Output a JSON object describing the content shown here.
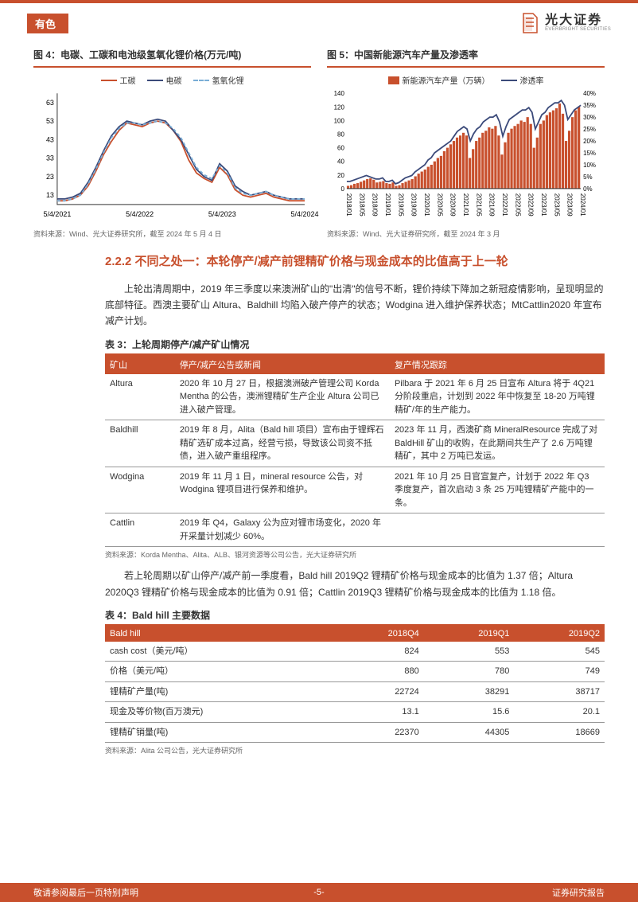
{
  "header": {
    "category": "有色",
    "company_cn": "光大证券",
    "company_en": "EVERBRIGHT SECURITIES"
  },
  "chart4": {
    "title": "图 4：电碳、工碳和电池级氢氧化锂价格(万元/吨)",
    "source": "资料来源：Wind、光大证券研究所，截至 2024 年 5 月 4 日",
    "type": "line",
    "background_color": "#ffffff",
    "series": [
      {
        "name": "工碳",
        "color": "#c8502d",
        "style": "solid"
      },
      {
        "name": "电碳",
        "color": "#3b4a7a",
        "style": "solid"
      },
      {
        "name": "氢氧化锂",
        "color": "#7aaed6",
        "style": "dashed"
      }
    ],
    "x_labels": [
      "5/4/2021",
      "5/4/2022",
      "5/4/2023",
      "5/4/2024"
    ],
    "y_ticks": [
      13,
      23,
      33,
      43,
      53,
      63
    ],
    "ylim": [
      8,
      68
    ],
    "axis_fontsize": 9,
    "line_width": 1.8,
    "gongtan": [
      10,
      10,
      11,
      13,
      18,
      26,
      35,
      42,
      48,
      52,
      51,
      50,
      52,
      53,
      52,
      48,
      42,
      32,
      25,
      22,
      20,
      28,
      24,
      16,
      13,
      12,
      13,
      14,
      12,
      11,
      10,
      10,
      10
    ],
    "diantan": [
      11,
      11,
      12,
      14,
      20,
      28,
      37,
      45,
      50,
      53,
      52,
      51,
      53,
      54,
      53,
      48,
      43,
      35,
      27,
      23,
      21,
      30,
      26,
      18,
      15,
      13,
      14,
      15,
      13,
      12,
      11,
      11,
      11
    ],
    "qingyang": [
      10,
      10,
      11,
      13,
      19,
      27,
      36,
      44,
      49,
      52,
      52,
      51,
      52,
      53,
      52,
      49,
      44,
      36,
      28,
      24,
      22,
      29,
      25,
      17,
      14,
      13,
      14,
      15,
      13,
      12,
      11,
      11,
      11
    ]
  },
  "chart5": {
    "title": "图 5：中国新能源汽车产量及渗透率",
    "source": "资料来源：Wind、光大证券研究所，截至 2024 年 3 月",
    "type": "bar+line",
    "background_color": "#ffffff",
    "series": [
      {
        "name": "新能源汽车产量（万辆）",
        "color": "#c8502d",
        "type": "bar"
      },
      {
        "name": "渗透率",
        "color": "#3b4a7a",
        "type": "line"
      }
    ],
    "x_labels": [
      "2018/01",
      "2018/05",
      "2018/09",
      "2019/01",
      "2019/05",
      "2019/09",
      "2020/01",
      "2020/05",
      "2020/09",
      "2021/01",
      "2021/05",
      "2021/09",
      "2022/01",
      "2022/05",
      "2022/09",
      "2023/01",
      "2023/05",
      "2023/09",
      "2024/01"
    ],
    "y_left_ticks": [
      0,
      20,
      40,
      60,
      80,
      100,
      120,
      140
    ],
    "y_right_ticks": [
      "0%",
      "5%",
      "10%",
      "15%",
      "20%",
      "25%",
      "30%",
      "35%",
      "40%"
    ],
    "ylim_left": [
      0,
      140
    ],
    "ylim_right": [
      0,
      40
    ],
    "axis_fontsize": 8,
    "production": [
      4,
      5,
      7,
      8,
      10,
      12,
      14,
      15,
      13,
      9,
      10,
      11,
      8,
      7,
      9,
      4,
      5,
      8,
      10,
      12,
      14,
      18,
      22,
      25,
      28,
      32,
      35,
      40,
      45,
      48,
      55,
      60,
      65,
      70,
      75,
      78,
      82,
      78,
      45,
      58,
      70,
      75,
      82,
      85,
      90,
      88,
      92,
      78,
      50,
      68,
      82,
      88,
      92,
      95,
      100,
      98,
      105,
      95,
      60,
      75,
      95,
      100,
      108,
      112,
      115,
      118,
      125,
      110,
      70,
      85,
      105,
      115,
      120
    ],
    "penetration": [
      3,
      3,
      3.5,
      4,
      4.5,
      5,
      5.5,
      5,
      4.5,
      4,
      4,
      4.5,
      3,
      3,
      3.5,
      2,
      2.5,
      3.5,
      4.5,
      5,
      5.5,
      7,
      8,
      9,
      10,
      12,
      13,
      15,
      16,
      17,
      18,
      19,
      20,
      22,
      24,
      25,
      26,
      25,
      20,
      23,
      25,
      26,
      28,
      29,
      30,
      30,
      31,
      28,
      22,
      26,
      29,
      30,
      31,
      32,
      33,
      33,
      34,
      32,
      25,
      28,
      31,
      32,
      34,
      35,
      36,
      36,
      37,
      35,
      29,
      31,
      33,
      34,
      35
    ]
  },
  "section_heading": "2.2.2 不同之处一：本轮停产/减产前锂精矿价格与现金成本的比值高于上一轮",
  "para1": "上轮出清周期中，2019 年三季度以来澳洲矿山的\"出清\"的信号不断，锂价持续下降加之新冠疫情影响，呈现明显的底部特征。西澳主要矿山 Altura、Baldhill 均陷入破产停产的状态；Wodgina 进入维护保养状态；MtCattlin2020 年宣布减产计划。",
  "table3": {
    "title": "表 3：上轮周期停产/减产矿山情况",
    "columns": [
      "矿山",
      "停产/减产公告或新闻",
      "复产情况跟踪"
    ],
    "col_widths": [
      "14%",
      "43%",
      "43%"
    ],
    "rows": [
      [
        "Altura",
        "2020 年 10 月 27 日，根据澳洲破产管理公司 Korda Mentha 的公告，澳洲锂精矿生产企业 Altura 公司已进入破产管理。",
        "Pilbara 于 2021 年 6 月 25 日宣布 Altura 将于 4Q21 分阶段重启，计划到 2022 年中恢复至 18-20 万吨锂精矿/年的生产能力。"
      ],
      [
        "Baldhill",
        "2019 年 8 月，Alita（Bald hill 项目）宣布由于锂辉石精矿选矿成本过高，经营亏损，导致该公司资不抵债，进入破产重组程序。",
        "2023 年 11 月，西澳矿商 MineralResource 完成了对 BaldHill 矿山的收购，在此期间共生产了 2.6 万吨锂精矿，其中 2 万吨已发运。"
      ],
      [
        "Wodgina",
        "2019 年 11 月 1 日，mineral resource 公告，对 Wodgina 锂项目进行保养和维护。",
        "2021 年 10 月 25 日官宣复产，计划于 2022 年 Q3 季度复产，首次启动 3 条 25 万吨锂精矿产能中的一条。"
      ],
      [
        "Cattlin",
        "2019 年 Q4，Galaxy 公为应对锂市场变化，2020 年开采量计划减少 60%。",
        ""
      ]
    ],
    "source": "资料来源：Korda Mentha、Alita、ALB、银河资源等公司公告，光大证券研究所"
  },
  "para2": "若上轮周期以矿山停产/减产前一季度看，Bald hill 2019Q2 锂精矿价格与现金成本的比值为 1.37 倍；Altura 2020Q3 锂精矿价格与现金成本的比值为 0.91 倍；Cattlin 2019Q3 锂精矿价格与现金成本的比值为 1.18 倍。",
  "table4": {
    "title": "表 4：Bald hill 主要数据",
    "columns": [
      "Bald hill",
      "2018Q4",
      "2019Q1",
      "2019Q2"
    ],
    "rows": [
      [
        "cash cost（美元/吨）",
        "824",
        "553",
        "545"
      ],
      [
        "价格（美元/吨）",
        "880",
        "780",
        "749"
      ],
      [
        "锂精矿产量(吨)",
        "22724",
        "38291",
        "38717"
      ],
      [
        "现金及等价物(百万澳元)",
        "13.1",
        "15.6",
        "20.1"
      ],
      [
        "锂精矿销量(吨)",
        "22370",
        "44305",
        "18669"
      ]
    ],
    "source": "资料来源：Alita 公司公告，光大证券研究所"
  },
  "footer": {
    "left": "敬请参阅最后一页特别声明",
    "page": "-5-",
    "right": "证券研究报告"
  }
}
